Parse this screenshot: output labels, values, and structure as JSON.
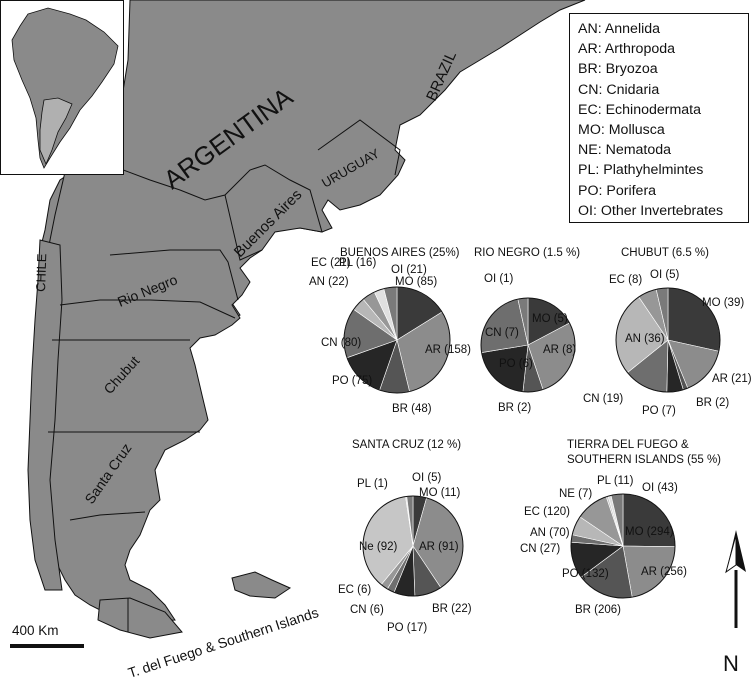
{
  "labels": {
    "argentina": "ARGENTINA",
    "brazil": "BRAZIL",
    "uruguay": "URUGUAY",
    "chile": "CHILE",
    "buenos_aires": "Buenos Aires",
    "rio_negro": "Rio Negro",
    "chubut": "Chubut",
    "santa_cruz": "Santa Cruz",
    "tierra_del_fuego": "T. del Fuego & Southern Islands"
  },
  "scale_bar": "400 Km",
  "north": "N",
  "legend": [
    {
      "code": "AN",
      "name": "Annelida",
      "label": "AN: Annelida"
    },
    {
      "code": "AR",
      "name": "Arthropoda",
      "label": "AR: Arthropoda"
    },
    {
      "code": "BR",
      "name": "Bryozoa",
      "label": "BR: Bryozoa"
    },
    {
      "code": "CN",
      "name": "Cnidaria",
      "label": "CN: Cnidaria"
    },
    {
      "code": "EC",
      "name": "Echinodermata",
      "label": "EC: Echinodermata"
    },
    {
      "code": "MO",
      "name": "Mollusca",
      "label": "MO: Mollusca"
    },
    {
      "code": "NE",
      "name": "Nematoda",
      "label": "NE: Nematoda"
    },
    {
      "code": "PL",
      "name": "Plathyhelmintes",
      "label": "PL: Plathyhelmintes"
    },
    {
      "code": "PO",
      "name": "Porifera",
      "label": "PO: Porifera"
    },
    {
      "code": "OI",
      "name": "Other Invertebrates",
      "label": "OI: Other Invertebrates"
    }
  ],
  "colors": {
    "MO": "#3a3a3a",
    "AR": "#8c8c8c",
    "BR": "#555555",
    "PO": "#262626",
    "CN": "#6e6e6e",
    "AN": "#b7b7b7",
    "EC": "#979797",
    "NE": "#c6c6c6",
    "PL": "#e0e0e0",
    "OI": "#7a7a7a",
    "land": "#8a8a8a",
    "neighbour": "#8a8a8a"
  },
  "chart_data": [
    {
      "type": "pie",
      "title": "BUENOS AIRES (25%)",
      "slices": [
        {
          "code": "MO",
          "value": 85,
          "label": "MO (85)"
        },
        {
          "code": "AR",
          "value": 158,
          "label": "AR (158)"
        },
        {
          "code": "BR",
          "value": 48,
          "label": "BR (48)"
        },
        {
          "code": "PO",
          "value": 75,
          "label": "PO (75)"
        },
        {
          "code": "CN",
          "value": 80,
          "label": "CN (80)"
        },
        {
          "code": "AN",
          "value": 22,
          "label": "AN (22)"
        },
        {
          "code": "EC",
          "value": 21,
          "label": "EC (21)"
        },
        {
          "code": "PL",
          "value": 16,
          "label": "PL (16)"
        },
        {
          "code": "OI",
          "value": 21,
          "label": "OI (21)"
        }
      ]
    },
    {
      "type": "pie",
      "title": "RIO NEGRO (1.5 %)",
      "slices": [
        {
          "code": "MO",
          "value": 5,
          "label": "MO (5)"
        },
        {
          "code": "AR",
          "value": 8,
          "label": "AR (8)"
        },
        {
          "code": "BR",
          "value": 2,
          "label": "BR (2)"
        },
        {
          "code": "PO",
          "value": 6,
          "label": "PO (6)"
        },
        {
          "code": "CN",
          "value": 7,
          "label": "CN (7)"
        },
        {
          "code": "OI",
          "value": 1,
          "label": "OI (1)"
        }
      ]
    },
    {
      "type": "pie",
      "title": "CHUBUT (6.5 %)",
      "slices": [
        {
          "code": "MO",
          "value": 39,
          "label": "MO (39)"
        },
        {
          "code": "AR",
          "value": 21,
          "label": "AR (21)"
        },
        {
          "code": "BR",
          "value": 2,
          "label": "BR (2)"
        },
        {
          "code": "PO",
          "value": 7,
          "label": "PO (7)"
        },
        {
          "code": "CN",
          "value": 19,
          "label": "CN (19)"
        },
        {
          "code": "AN",
          "value": 36,
          "label": "AN (36)"
        },
        {
          "code": "EC",
          "value": 8,
          "label": "EC (8)"
        },
        {
          "code": "OI",
          "value": 5,
          "label": "OI (5)"
        }
      ]
    },
    {
      "type": "pie",
      "title": "SANTA CRUZ (12 %)",
      "slices": [
        {
          "code": "MO",
          "value": 11,
          "label": "MO (11)"
        },
        {
          "code": "AR",
          "value": 91,
          "label": "AR (91)"
        },
        {
          "code": "BR",
          "value": 22,
          "label": "BR (22)"
        },
        {
          "code": "PO",
          "value": 17,
          "label": "PO (17)"
        },
        {
          "code": "CN",
          "value": 6,
          "label": "CN (6)"
        },
        {
          "code": "EC",
          "value": 6,
          "label": "EC (6)"
        },
        {
          "code": "NE",
          "value": 92,
          "label": "Ne (92)"
        },
        {
          "code": "PL",
          "value": 1,
          "label": "PL (1)"
        },
        {
          "code": "OI",
          "value": 5,
          "label": "OI (5)"
        }
      ]
    },
    {
      "type": "pie",
      "title": "TIERRA DEL FUEGO & SOUTHERN ISLANDS (55 %)",
      "title_lines": [
        "TIERRA DEL FUEGO &",
        "SOUTHERN ISLANDS (55 %)"
      ],
      "slices": [
        {
          "code": "MO",
          "value": 294,
          "label": "MO (294)"
        },
        {
          "code": "AR",
          "value": 256,
          "label": "AR (256)"
        },
        {
          "code": "BR",
          "value": 206,
          "label": "BR (206)"
        },
        {
          "code": "PO",
          "value": 132,
          "label": "PO (132)"
        },
        {
          "code": "CN",
          "value": 27,
          "label": "CN (27)"
        },
        {
          "code": "AN",
          "value": 70,
          "label": "AN (70)"
        },
        {
          "code": "EC",
          "value": 120,
          "label": "EC (120)"
        },
        {
          "code": "NE",
          "value": 7,
          "label": "NE (7)"
        },
        {
          "code": "PL",
          "value": 11,
          "label": "PL (11)"
        },
        {
          "code": "OI",
          "value": 43,
          "label": "OI (43)"
        }
      ]
    }
  ]
}
